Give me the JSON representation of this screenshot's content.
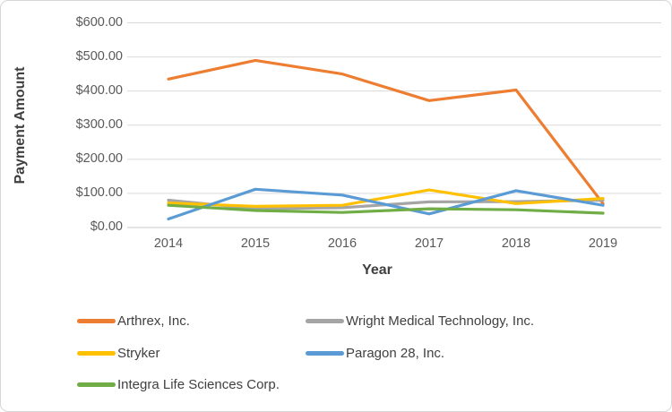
{
  "chart": {
    "y_tick_labels": [
      "$0.00",
      "$100.00",
      "$200.00",
      "$300.00",
      "$400.00",
      "$500.00",
      "$600.00"
    ],
    "grid_color": "#d9d9d9",
    "axis_line_color": "#c9c9c9"
  },
  "chart_data": {
    "type": "line",
    "title": "",
    "xlabel": "Year",
    "ylabel": "Payment Amount",
    "categories": [
      "2014",
      "2015",
      "2016",
      "2017",
      "2018",
      "2019"
    ],
    "series": [
      {
        "name": "Arthrex, Inc.",
        "color": "#ED7D31",
        "values": [
          435,
          490,
          450,
          372,
          403,
          70
        ]
      },
      {
        "name": "Wright Medical Technology, Inc.",
        "color": "#A5A5A5",
        "values": [
          80,
          55,
          58,
          75,
          76,
          80
        ]
      },
      {
        "name": "Stryker",
        "color": "#FFC000",
        "values": [
          72,
          62,
          65,
          110,
          70,
          85
        ]
      },
      {
        "name": "Paragon 28, Inc.",
        "color": "#5B9BD5",
        "values": [
          25,
          112,
          95,
          40,
          108,
          65
        ]
      },
      {
        "name": "Integra Life Sciences Corp.",
        "color": "#70AD47",
        "values": [
          65,
          50,
          44,
          55,
          52,
          42
        ]
      }
    ],
    "ylim": [
      0,
      600
    ],
    "y_tick_step": 100,
    "y_tick_format": "currency",
    "grid": "horizontal-only",
    "legend_position": "bottom-two-columns",
    "legend_order": [
      "Arthrex, Inc.",
      "Wright Medical Technology, Inc.",
      "Stryker",
      "Paragon 28, Inc.",
      "Integra Life Sciences Corp."
    ]
  }
}
